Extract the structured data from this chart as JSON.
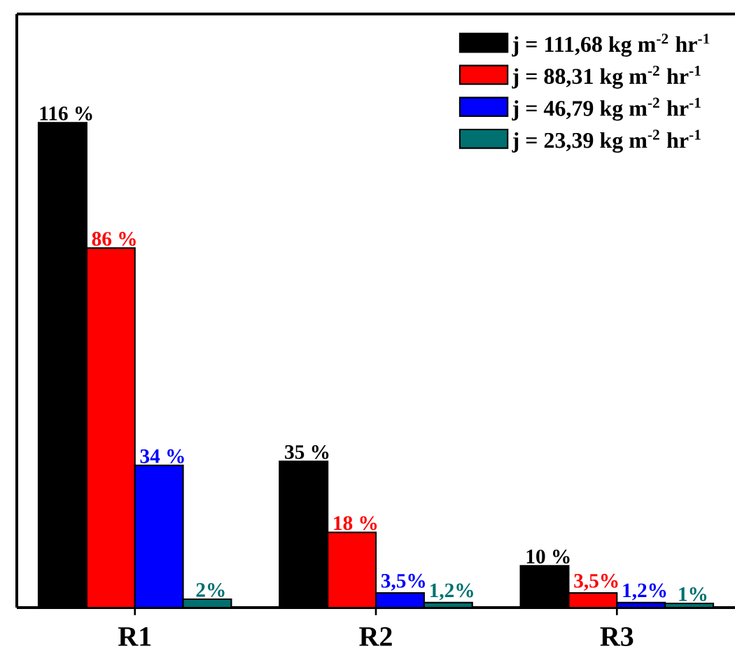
{
  "chart_data": {
    "type": "bar",
    "categories": [
      "R1",
      "R2",
      "R3"
    ],
    "series": [
      {
        "name": "j = 111,68 kg m$^{-2}$ hr$^{-1}$",
        "color": "#000000",
        "values": [
          116,
          35,
          10
        ],
        "value_labels": [
          "116 %",
          "35 %",
          "10 %"
        ]
      },
      {
        "name": "j = 88,31 kg m$^{-2}$ hr$^{-1}$",
        "color": "#ff0000",
        "values": [
          86,
          18,
          3.5
        ],
        "value_labels": [
          "86 %",
          "18 %",
          "3,5%"
        ]
      },
      {
        "name": "j = 46,79 kg m$^{-2}$ hr$^{-1}$",
        "color": "#0000ff",
        "values": [
          34,
          3.5,
          1.2
        ],
        "value_labels": [
          "34 %",
          "3,5%",
          "1,2%"
        ]
      },
      {
        "name": "j = 23,39 kg m$^{-2}$ hr$^{-1}$",
        "color": "#007070",
        "values": [
          2,
          1.2,
          1
        ],
        "value_labels": [
          "2%",
          "1,2%",
          "1%"
        ]
      }
    ],
    "ylim": [
      0,
      142
    ],
    "legend": "top right"
  }
}
